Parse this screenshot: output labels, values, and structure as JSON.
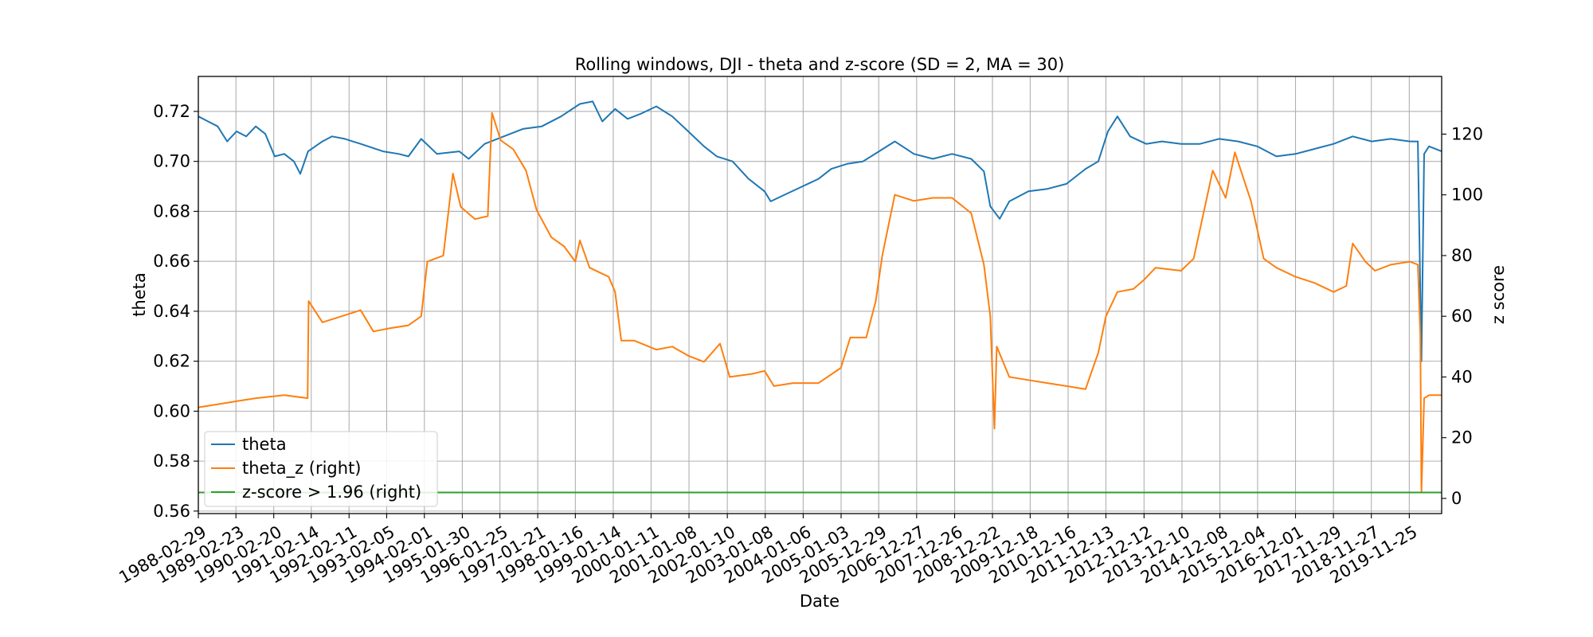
{
  "chart_data": {
    "type": "line",
    "title": "Rolling windows, DJI - theta and z-score (SD = 2, MA = 30)",
    "xlabel": "Date",
    "ylabel": "theta",
    "ylabel_right": "z score",
    "x_range": [
      "1988-02-29",
      "2020-09-30"
    ],
    "ylim": [
      0.559,
      0.734
    ],
    "ylim_right": [
      -5,
      139
    ],
    "grid": true,
    "legend_position": "lower-left",
    "x_ticks": [
      "1988-02-29",
      "1989-02-23",
      "1990-02-20",
      "1991-02-14",
      "1992-02-11",
      "1993-02-05",
      "1994-02-01",
      "1995-01-30",
      "1996-01-25",
      "1997-01-21",
      "1998-01-16",
      "1999-01-14",
      "2000-01-11",
      "2001-01-08",
      "2002-01-10",
      "2003-01-08",
      "2004-01-06",
      "2005-01-03",
      "2005-12-29",
      "2006-12-27",
      "2007-12-26",
      "2008-12-22",
      "2009-12-18",
      "2010-12-16",
      "2011-12-13",
      "2012-12-12",
      "2013-12-10",
      "2014-12-08",
      "2015-12-04",
      "2016-12-01",
      "2017-11-29",
      "2018-11-27",
      "2019-11-25"
    ],
    "y_ticks_left": [
      "0.56",
      "0.58",
      "0.60",
      "0.62",
      "0.64",
      "0.66",
      "0.68",
      "0.70",
      "0.72"
    ],
    "y_ticks_left_values": [
      0.56,
      0.58,
      0.6,
      0.62,
      0.64,
      0.66,
      0.68,
      0.7,
      0.72
    ],
    "y_ticks_right": [
      "0",
      "20",
      "40",
      "60",
      "80",
      "100",
      "120"
    ],
    "y_ticks_right_values": [
      0,
      20,
      40,
      60,
      80,
      100,
      120
    ],
    "series": [
      {
        "name": "theta",
        "axis": "left",
        "color": "#1f77b4",
        "points": [
          [
            "1988-02-29",
            0.718
          ],
          [
            "1988-06-01",
            0.716
          ],
          [
            "1988-09-01",
            0.714
          ],
          [
            "1988-12-01",
            0.708
          ],
          [
            "1989-03-01",
            0.712
          ],
          [
            "1989-06-01",
            0.71
          ],
          [
            "1989-09-01",
            0.714
          ],
          [
            "1989-12-01",
            0.711
          ],
          [
            "1990-03-01",
            0.702
          ],
          [
            "1990-06-01",
            0.703
          ],
          [
            "1990-09-01",
            0.7
          ],
          [
            "1990-11-01",
            0.695
          ],
          [
            "1991-01-15",
            0.704
          ],
          [
            "1991-06-01",
            0.708
          ],
          [
            "1991-09-01",
            0.71
          ],
          [
            "1992-01-01",
            0.709
          ],
          [
            "1992-06-01",
            0.707
          ],
          [
            "1993-01-01",
            0.704
          ],
          [
            "1993-06-01",
            0.703
          ],
          [
            "1993-09-01",
            0.702
          ],
          [
            "1994-01-01",
            0.709
          ],
          [
            "1994-06-01",
            0.703
          ],
          [
            "1995-01-01",
            0.704
          ],
          [
            "1995-04-01",
            0.701
          ],
          [
            "1995-09-01",
            0.707
          ],
          [
            "1996-03-01",
            0.71
          ],
          [
            "1996-09-01",
            0.713
          ],
          [
            "1997-03-01",
            0.714
          ],
          [
            "1997-09-01",
            0.718
          ],
          [
            "1998-03-01",
            0.723
          ],
          [
            "1998-07-01",
            0.724
          ],
          [
            "1998-10-01",
            0.716
          ],
          [
            "1999-02-01",
            0.721
          ],
          [
            "1999-06-01",
            0.717
          ],
          [
            "1999-10-01",
            0.719
          ],
          [
            "2000-03-01",
            0.722
          ],
          [
            "2000-08-01",
            0.718
          ],
          [
            "2001-01-01",
            0.712
          ],
          [
            "2001-06-01",
            0.706
          ],
          [
            "2001-10-01",
            0.702
          ],
          [
            "2002-03-01",
            0.7
          ],
          [
            "2002-08-01",
            0.693
          ],
          [
            "2003-01-01",
            0.688
          ],
          [
            "2003-03-01",
            0.684
          ],
          [
            "2003-08-01",
            0.687
          ],
          [
            "2004-01-01",
            0.69
          ],
          [
            "2004-06-01",
            0.693
          ],
          [
            "2004-10-01",
            0.697
          ],
          [
            "2005-03-01",
            0.699
          ],
          [
            "2005-08-01",
            0.7
          ],
          [
            "2006-01-01",
            0.704
          ],
          [
            "2006-06-01",
            0.708
          ],
          [
            "2006-12-01",
            0.703
          ],
          [
            "2007-06-01",
            0.701
          ],
          [
            "2007-12-01",
            0.703
          ],
          [
            "2008-06-01",
            0.701
          ],
          [
            "2008-10-01",
            0.696
          ],
          [
            "2008-12-01",
            0.682
          ],
          [
            "2009-03-01",
            0.677
          ],
          [
            "2009-06-01",
            0.684
          ],
          [
            "2009-12-01",
            0.688
          ],
          [
            "2010-06-01",
            0.689
          ],
          [
            "2010-12-01",
            0.691
          ],
          [
            "2011-06-01",
            0.697
          ],
          [
            "2011-10-01",
            0.7
          ],
          [
            "2012-01-01",
            0.712
          ],
          [
            "2012-04-01",
            0.718
          ],
          [
            "2012-08-01",
            0.71
          ],
          [
            "2013-01-01",
            0.707
          ],
          [
            "2013-06-01",
            0.708
          ],
          [
            "2013-12-01",
            0.707
          ],
          [
            "2014-06-01",
            0.707
          ],
          [
            "2014-12-01",
            0.709
          ],
          [
            "2015-06-01",
            0.708
          ],
          [
            "2015-12-01",
            0.706
          ],
          [
            "2016-06-01",
            0.702
          ],
          [
            "2016-12-01",
            0.703
          ],
          [
            "2017-06-01",
            0.705
          ],
          [
            "2017-12-01",
            0.707
          ],
          [
            "2018-06-01",
            0.71
          ],
          [
            "2018-12-01",
            0.708
          ],
          [
            "2019-06-01",
            0.709
          ],
          [
            "2019-12-01",
            0.708
          ],
          [
            "2020-02-15",
            0.708
          ],
          [
            "2020-03-20",
            0.62
          ],
          [
            "2020-04-15",
            0.703
          ],
          [
            "2020-06-01",
            0.706
          ],
          [
            "2020-09-30",
            0.704
          ]
        ]
      },
      {
        "name": "theta_z (right)",
        "axis": "right",
        "color": "#ff7f0e",
        "points": [
          [
            "1988-02-29",
            30
          ],
          [
            "1988-09-01",
            31
          ],
          [
            "1989-03-01",
            32
          ],
          [
            "1989-09-01",
            33
          ],
          [
            "1990-06-01",
            34
          ],
          [
            "1991-01-10",
            33
          ],
          [
            "1991-01-20",
            65
          ],
          [
            "1991-06-01",
            58
          ],
          [
            "1991-12-01",
            60
          ],
          [
            "1992-06-01",
            62
          ],
          [
            "1992-10-01",
            55
          ],
          [
            "1993-03-01",
            56
          ],
          [
            "1993-09-01",
            57
          ],
          [
            "1994-01-01",
            60
          ],
          [
            "1994-03-01",
            78
          ],
          [
            "1994-08-01",
            80
          ],
          [
            "1994-11-01",
            107
          ],
          [
            "1995-01-15",
            96
          ],
          [
            "1995-06-01",
            92
          ],
          [
            "1995-10-01",
            93
          ],
          [
            "1995-11-10",
            127
          ],
          [
            "1996-02-01",
            118
          ],
          [
            "1996-06-01",
            115
          ],
          [
            "1996-10-01",
            108
          ],
          [
            "1997-01-10",
            95
          ],
          [
            "1997-06-01",
            86
          ],
          [
            "1997-10-01",
            83
          ],
          [
            "1998-01-16",
            78
          ],
          [
            "1998-03-01",
            85
          ],
          [
            "1998-06-01",
            76
          ],
          [
            "1998-12-01",
            73
          ],
          [
            "1999-02-01",
            68
          ],
          [
            "1999-04-01",
            52
          ],
          [
            "1999-08-01",
            52
          ],
          [
            "2000-03-01",
            49
          ],
          [
            "2000-08-01",
            50
          ],
          [
            "2001-01-01",
            47
          ],
          [
            "2001-06-01",
            45
          ],
          [
            "2001-11-01",
            51
          ],
          [
            "2002-02-01",
            40
          ],
          [
            "2002-09-01",
            41
          ],
          [
            "2003-01-01",
            42
          ],
          [
            "2003-04-01",
            37
          ],
          [
            "2003-10-01",
            38
          ],
          [
            "2004-06-01",
            38
          ],
          [
            "2005-01-01",
            43
          ],
          [
            "2005-04-01",
            53
          ],
          [
            "2005-09-01",
            53
          ],
          [
            "2005-12-01",
            65
          ],
          [
            "2006-02-01",
            80
          ],
          [
            "2006-06-01",
            100
          ],
          [
            "2006-12-01",
            98
          ],
          [
            "2007-06-01",
            99
          ],
          [
            "2007-12-01",
            99
          ],
          [
            "2008-06-01",
            94
          ],
          [
            "2008-10-01",
            77
          ],
          [
            "2008-12-01",
            60
          ],
          [
            "2009-01-10",
            23
          ],
          [
            "2009-02-01",
            50
          ],
          [
            "2009-06-01",
            40
          ],
          [
            "2009-12-01",
            39
          ],
          [
            "2010-06-01",
            38
          ],
          [
            "2010-12-01",
            37
          ],
          [
            "2011-06-01",
            36
          ],
          [
            "2011-10-01",
            48
          ],
          [
            "2011-12-13",
            60
          ],
          [
            "2012-04-01",
            68
          ],
          [
            "2012-09-01",
            69
          ],
          [
            "2012-12-12",
            72
          ],
          [
            "2013-04-01",
            76
          ],
          [
            "2013-12-01",
            75
          ],
          [
            "2014-04-01",
            79
          ],
          [
            "2014-10-01",
            108
          ],
          [
            "2015-02-01",
            99
          ],
          [
            "2015-05-01",
            114
          ],
          [
            "2015-10-01",
            98
          ],
          [
            "2016-02-01",
            79
          ],
          [
            "2016-06-01",
            76
          ],
          [
            "2016-12-01",
            73
          ],
          [
            "2017-06-01",
            71
          ],
          [
            "2017-12-01",
            68
          ],
          [
            "2018-04-01",
            70
          ],
          [
            "2018-06-01",
            84
          ],
          [
            "2018-10-01",
            78
          ],
          [
            "2019-01-01",
            75
          ],
          [
            "2019-06-01",
            77
          ],
          [
            "2019-12-01",
            78
          ],
          [
            "2020-02-15",
            77
          ],
          [
            "2020-03-10",
            54
          ],
          [
            "2020-03-20",
            2
          ],
          [
            "2020-04-15",
            33
          ],
          [
            "2020-06-01",
            34
          ],
          [
            "2020-09-30",
            34
          ]
        ]
      },
      {
        "name": "z-score > 1.96 (right)",
        "axis": "right",
        "color": "#2ca02c",
        "points": [
          [
            "1988-02-29",
            1.96
          ],
          [
            "2020-09-30",
            1.96
          ]
        ]
      }
    ]
  }
}
